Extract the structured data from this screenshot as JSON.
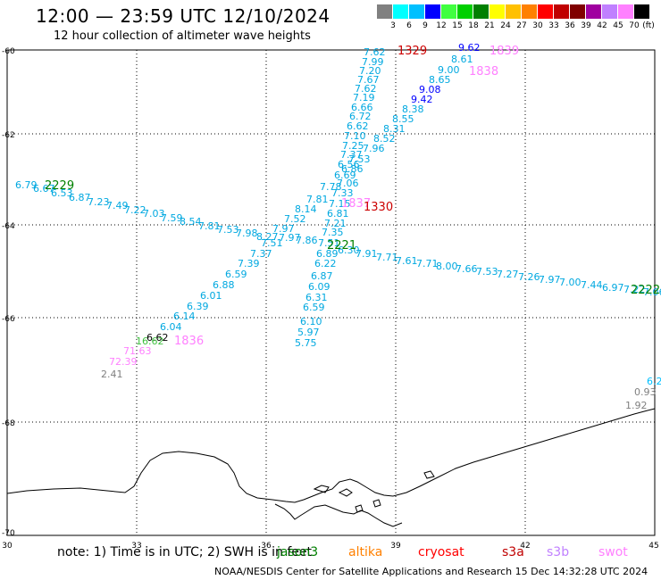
{
  "header": {
    "title": "12:00 — 23:59 UTC 12/10/2024",
    "subtitle": "12 hour collection of altimeter wave heights"
  },
  "colorbar": {
    "colors": [
      "#808080",
      "#00ffff",
      "#00c0ff",
      "#0000ff",
      "#40ff40",
      "#00d000",
      "#008000",
      "#ffff00",
      "#ffc000",
      "#ff8000",
      "#ff0000",
      "#c00000",
      "#800000",
      "#a000a0",
      "#c080ff",
      "#ff80ff",
      "#000000"
    ],
    "labels": [
      "3",
      "6",
      "9",
      "12",
      "15",
      "18",
      "21",
      "24",
      "27",
      "30",
      "33",
      "36",
      "39",
      "42",
      "45",
      "70",
      "(ft)"
    ]
  },
  "axes": {
    "x_ticks": [
      "30",
      "33",
      "36",
      "39",
      "42",
      "45"
    ],
    "y_ticks": [
      "-60",
      "-62",
      "-64",
      "-66",
      "-68",
      "-70"
    ]
  },
  "tracks": {
    "track_a_values": [
      "7.62",
      "7.99",
      "7.20",
      "7.67",
      "7.62",
      "7.19",
      "6.66",
      "6.72",
      "6.62",
      "7.10",
      "7.25",
      "7.37",
      "7.53",
      "6.56",
      "6.86",
      "6.69",
      "7.06",
      "7.78",
      "7.33",
      "7.81",
      "7.15",
      "8.14",
      "6.81",
      "7.52",
      "7.21",
      "7.97",
      "7.35",
      "7.97",
      "7.86",
      "7.51",
      "6.89",
      "6.22",
      "6.87",
      "6.09",
      "6.31",
      "6.59",
      "6.10",
      "5.97",
      "5.75"
    ],
    "track_b_values": [
      "9.62",
      "8.61",
      "9.00",
      "8.65",
      "9.08",
      "9.42",
      "8.38",
      "8.55",
      "8.31",
      "8.52",
      "7.96"
    ],
    "track_c_values": [
      "6.79",
      "6.67",
      "6.53",
      "6.87",
      "7.23",
      "7.49",
      "7.22",
      "7.03",
      "7.59",
      "8.54",
      "7.81",
      "7.53",
      "7.98",
      "8.27"
    ],
    "track_d_values": [
      "7.51",
      "7.37",
      "7.39",
      "6.59",
      "6.88",
      "6.01",
      "6.39",
      "6.14",
      "6.04",
      "6.62",
      "16.62",
      "71.63",
      "72.39",
      "2.41"
    ],
    "track_e_values": [
      "6.30",
      "7.91",
      "7.71",
      "7.61",
      "7.71",
      "8.00",
      "7.66",
      "7.53",
      "7.27",
      "7.26",
      "7.97",
      "7.00",
      "7.44",
      "6.97",
      "7.22",
      "7.06"
    ],
    "track_f_values": [
      "6.2",
      "0.93",
      "1.92"
    ],
    "time_labels": [
      {
        "text": "1329",
        "color": "#cc0000"
      },
      {
        "text": "1839",
        "color": "#ff80ff"
      },
      {
        "text": "1838",
        "color": "#ff80ff"
      },
      {
        "text": "2229",
        "color": "#008000"
      },
      {
        "text": "1837",
        "color": "#ff80ff"
      },
      {
        "text": "1330",
        "color": "#cc0000"
      },
      {
        "text": "2221",
        "color": "#008000"
      },
      {
        "text": "2222",
        "color": "#008000"
      },
      {
        "text": "1836",
        "color": "#ff80ff"
      }
    ]
  },
  "legend": {
    "note": "note:  1) Time is in UTC; 2) SWH is in feet",
    "satellites": [
      {
        "name": "jason3",
        "color": "#008000"
      },
      {
        "name": "altika",
        "color": "#ff8000"
      },
      {
        "name": "cryosat",
        "color": "#ff0000"
      },
      {
        "name": "s3a",
        "color": "#c00000"
      },
      {
        "name": "s3b",
        "color": "#c080ff"
      },
      {
        "name": "swot",
        "color": "#ff80ff"
      }
    ]
  },
  "footer": {
    "credit": "NOAA/NESDIS Center for Satellite Applications and Research     15 Dec 14:32:28 UTC 2024"
  }
}
